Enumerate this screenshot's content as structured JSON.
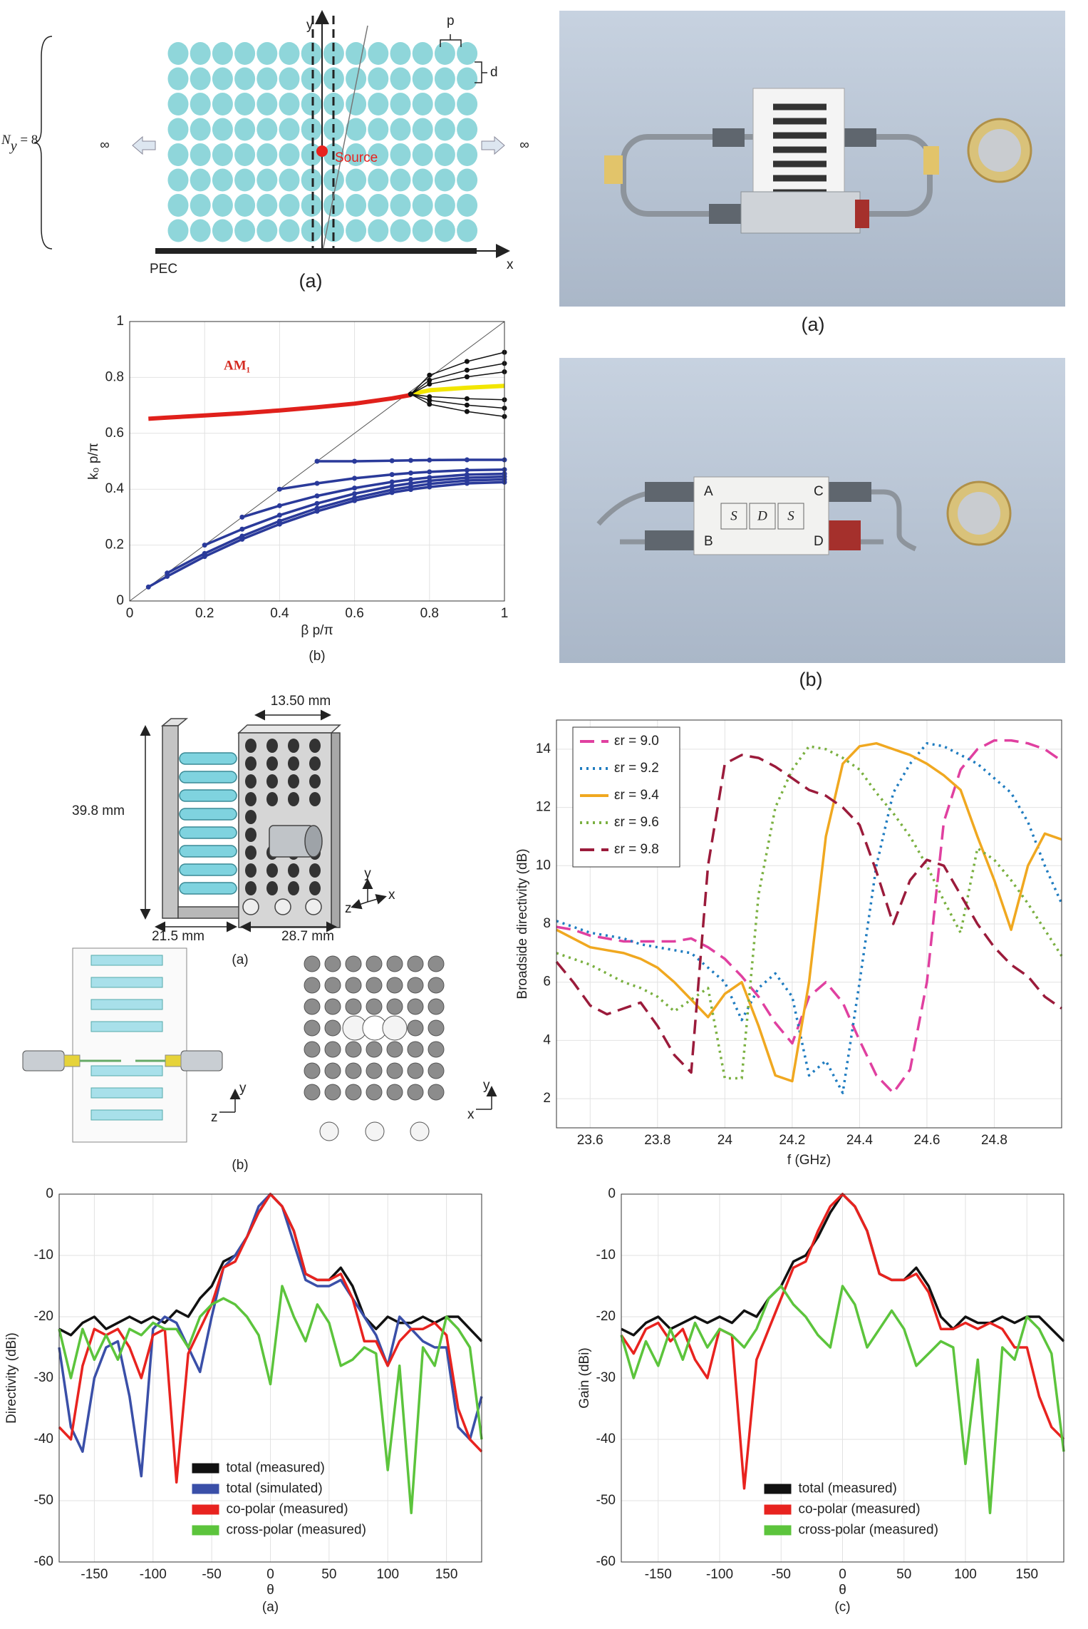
{
  "diagram": {
    "y_axis": "y",
    "x_axis": "x",
    "p": "p",
    "d": "d",
    "ny": [
      "N",
      "y",
      " = 8"
    ],
    "inf_left": "∞",
    "inf_right": "∞",
    "source": "Source",
    "pec": "PEC",
    "caption": "(a)"
  },
  "photos": {
    "a": {
      "caption": "(a)"
    },
    "b": {
      "caption": "(b)",
      "ports": [
        "A",
        "B",
        "C",
        "D"
      ],
      "letters": [
        "S",
        "D",
        "S"
      ]
    }
  },
  "cad": {
    "width_top": "13.50 mm",
    "height": "39.8 mm",
    "depth": "21.5 mm",
    "width": "28.7 mm",
    "caption_a": "(a)",
    "caption_b": "(b)",
    "axes_a": [
      "y",
      "z",
      "x"
    ],
    "axes_b1": [
      "y",
      "z"
    ],
    "axes_b2": [
      "y",
      "x"
    ]
  },
  "chart_data": [
    {
      "type": "line",
      "xlabel": "β p/π",
      "ylabel": "k₀ p/π",
      "caption": "(b)",
      "annotation": "AM₁",
      "light_line": true,
      "grid": true,
      "xlim": [
        0,
        1
      ],
      "ylim": [
        0,
        1
      ],
      "xticks": [
        0,
        0.2,
        0.4,
        0.6,
        0.8,
        1
      ],
      "yticks": [
        0,
        0.2,
        0.4,
        0.6,
        0.8,
        1
      ],
      "x": [
        0.05,
        0.1,
        0.2,
        0.3,
        0.4,
        0.5,
        0.6,
        0.7,
        0.75,
        0.8,
        0.9,
        1
      ],
      "series": [
        {
          "color": "#e0201b",
          "values": [
            0.652,
            0.656,
            0.664,
            0.672,
            0.682,
            0.693,
            0.706,
            0.725,
            0.737,
            null,
            null,
            null
          ]
        },
        {
          "color": "#2a3a9a",
          "marker": true,
          "values": [
            0.05,
            0.088,
            0.159,
            0.221,
            0.275,
            0.321,
            0.359,
            0.388,
            0.399,
            0.408,
            0.421,
            0.425
          ]
        },
        {
          "color": "#2a3a9a",
          "marker": true,
          "values": [
            null,
            0.1,
            0.17,
            0.232,
            0.286,
            0.332,
            0.369,
            0.398,
            0.409,
            0.419,
            0.431,
            0.435
          ]
        },
        {
          "color": "#2a3a9a",
          "marker": true,
          "values": [
            null,
            null,
            0.2,
            0.257,
            0.307,
            0.349,
            0.384,
            0.411,
            0.421,
            0.43,
            0.441,
            0.445
          ]
        },
        {
          "color": "#2a3a9a",
          "marker": true,
          "values": [
            null,
            null,
            null,
            0.3,
            0.341,
            0.376,
            0.404,
            0.426,
            0.435,
            0.442,
            0.452,
            0.455
          ]
        },
        {
          "color": "#2a3a9a",
          "marker": true,
          "values": [
            null,
            null,
            null,
            null,
            0.4,
            0.421,
            0.439,
            0.4525,
            0.458,
            0.462,
            0.468,
            0.47
          ]
        },
        {
          "color": "#2a3a9a",
          "marker": true,
          "values": [
            null,
            null,
            null,
            null,
            null,
            0.5,
            0.5,
            0.502,
            0.503,
            0.504,
            0.505,
            0.505
          ]
        },
        {
          "color": "#f2e600",
          "values": [
            null,
            null,
            null,
            null,
            null,
            null,
            null,
            null,
            0.74,
            0.754,
            0.763,
            0.77
          ]
        },
        {
          "color": "#111111",
          "marker": true,
          "values": [
            null,
            null,
            null,
            null,
            null,
            null,
            null,
            null,
            0.74,
            0.808,
            0.857,
            0.89
          ]
        },
        {
          "color": "#111111",
          "marker": true,
          "values": [
            null,
            null,
            null,
            null,
            null,
            null,
            null,
            null,
            0.74,
            0.79,
            0.826,
            0.85
          ]
        },
        {
          "color": "#111111",
          "marker": true,
          "values": [
            null,
            null,
            null,
            null,
            null,
            null,
            null,
            null,
            0.74,
            0.776,
            0.802,
            0.82
          ]
        },
        {
          "color": "#111111",
          "marker": true,
          "values": [
            null,
            null,
            null,
            null,
            null,
            null,
            null,
            null,
            0.74,
            0.731,
            0.724,
            0.72
          ]
        },
        {
          "color": "#111111",
          "marker": true,
          "values": [
            null,
            null,
            null,
            null,
            null,
            null,
            null,
            null,
            0.74,
            0.718,
            0.701,
            0.69
          ]
        },
        {
          "color": "#111111",
          "marker": true,
          "values": [
            null,
            null,
            null,
            null,
            null,
            null,
            null,
            null,
            0.74,
            0.704,
            0.678,
            0.66
          ]
        }
      ]
    },
    {
      "type": "line",
      "xlabel": "f (GHz)",
      "ylabel": "Broadside directivity (dB)",
      "grid": true,
      "legend": "upper left",
      "xlim": [
        23.5,
        25
      ],
      "ylim": [
        1,
        15
      ],
      "xticks": [
        23.6,
        23.8,
        24,
        24.2,
        24.4,
        24.6,
        24.8
      ],
      "yticks": [
        2,
        4,
        6,
        8,
        10,
        12,
        14
      ],
      "x": [
        23.5,
        23.55,
        23.6,
        23.65,
        23.7,
        23.75,
        23.8,
        23.85,
        23.9,
        23.95,
        24,
        24.05,
        24.1,
        24.15,
        24.2,
        24.25,
        24.3,
        24.35,
        24.4,
        24.45,
        24.5,
        24.55,
        24.6,
        24.65,
        24.7,
        24.75,
        24.8,
        24.85,
        24.9,
        24.95,
        25
      ],
      "series": [
        {
          "name": "εr = 9.0",
          "color": "#e040a0",
          "dash": "dashed",
          "values": [
            7.9,
            7.8,
            7.6,
            7.5,
            7.4,
            7.4,
            7.4,
            7.4,
            7.5,
            7.2,
            6.8,
            6.2,
            5.5,
            4.6,
            3.9,
            5.5,
            6.0,
            5.3,
            4.0,
            2.8,
            2.2,
            3.0,
            6.0,
            11.5,
            13.3,
            14.0,
            14.3,
            14.3,
            14.2,
            14.0,
            13.6
          ]
        },
        {
          "name": "εr = 9.2",
          "color": "#1f7cc0",
          "dash": "dotted",
          "values": [
            8.1,
            7.9,
            7.7,
            7.6,
            7.5,
            7.3,
            7.2,
            7.1,
            7.0,
            6.5,
            6.0,
            4.7,
            5.8,
            6.3,
            5.5,
            2.8,
            3.3,
            2.2,
            6.0,
            10.0,
            12.5,
            13.5,
            14.2,
            14.1,
            13.8,
            13.5,
            13.0,
            12.5,
            11.5,
            10.0,
            8.7
          ]
        },
        {
          "name": "εr = 9.4",
          "color": "#f0a820",
          "dash": "solid",
          "values": [
            7.8,
            7.5,
            7.2,
            7.1,
            7.0,
            6.8,
            6.5,
            6.0,
            5.4,
            4.8,
            5.6,
            6.0,
            4.5,
            2.8,
            2.6,
            6.0,
            11.0,
            13.5,
            14.1,
            14.2,
            14.0,
            13.8,
            13.5,
            13.1,
            12.6,
            11.0,
            9.5,
            7.8,
            10.0,
            11.1,
            10.9
          ]
        },
        {
          "name": "εr = 9.6",
          "color": "#7ab040",
          "dash": "dotted",
          "values": [
            7.0,
            6.8,
            6.6,
            6.3,
            6.0,
            5.8,
            5.5,
            5.0,
            5.4,
            5.8,
            2.7,
            2.7,
            9.0,
            12.0,
            13.3,
            14.1,
            14.0,
            13.7,
            13.3,
            12.5,
            11.8,
            11.0,
            10.0,
            8.8,
            7.7,
            10.6,
            10.2,
            9.5,
            8.7,
            7.8,
            6.9
          ]
        },
        {
          "name": "εr = 9.8",
          "color": "#9b1b3b",
          "dash": "dashed",
          "values": [
            6.7,
            6.0,
            5.2,
            4.9,
            5.1,
            5.3,
            4.5,
            3.5,
            2.9,
            10.0,
            13.5,
            13.8,
            13.7,
            13.4,
            13.0,
            12.6,
            12.4,
            12.0,
            11.4,
            9.8,
            8.0,
            9.5,
            10.2,
            10.0,
            9.0,
            8.0,
            7.2,
            6.6,
            6.2,
            5.5,
            5.1
          ]
        }
      ]
    },
    {
      "type": "line",
      "xlabel": "θ",
      "ylabel": "Directivity (dBi)",
      "caption": "(a)",
      "grid": true,
      "legend": "lower center",
      "xlim": [
        -180,
        180
      ],
      "ylim": [
        -60,
        0
      ],
      "xticks": [
        -150,
        -100,
        -50,
        0,
        50,
        100,
        150
      ],
      "yticks": [
        0,
        -10,
        -20,
        -30,
        -40,
        -50,
        -60
      ],
      "x": [
        -180,
        -170,
        -160,
        -150,
        -140,
        -130,
        -120,
        -110,
        -100,
        -90,
        -80,
        -70,
        -60,
        -50,
        -40,
        -30,
        -20,
        -10,
        0,
        10,
        20,
        30,
        40,
        50,
        60,
        70,
        80,
        90,
        100,
        110,
        120,
        130,
        140,
        150,
        160,
        170,
        180
      ],
      "series": [
        {
          "name": "total (measured)",
          "color": "#111111",
          "values": [
            -22,
            -23,
            -21,
            -20,
            -22,
            -21,
            -20,
            -21,
            -20,
            -21,
            -19,
            -20,
            -17,
            -15,
            -11,
            -10,
            -7,
            -3,
            0,
            -2,
            -6,
            -13,
            -14,
            -14,
            -12,
            -15,
            -20,
            -22,
            -20,
            -21,
            -21,
            -20,
            -21,
            -20,
            -20,
            -22,
            -24
          ]
        },
        {
          "name": "total (simulated)",
          "color": "#3a4fa8",
          "values": [
            -25,
            -38,
            -42,
            -30,
            -25,
            -24,
            -33,
            -46,
            -22,
            -20,
            -21,
            -25,
            -29,
            -20,
            -12,
            -10,
            -7,
            -2,
            0,
            -2,
            -8,
            -14,
            -15,
            -15,
            -14,
            -17,
            -20,
            -23,
            -28,
            -20,
            -22,
            -24,
            -25,
            -25,
            -38,
            -40,
            -33
          ]
        },
        {
          "name": "co-polar (measured)",
          "color": "#e8231f",
          "values": [
            -38,
            -40,
            -28,
            -22,
            -23,
            -22,
            -25,
            -30,
            -23,
            -22,
            -47,
            -26,
            -22,
            -18,
            -12,
            -11,
            -7,
            -3,
            0,
            -2,
            -6,
            -13,
            -14,
            -14,
            -13,
            -17,
            -24,
            -24,
            -28,
            -24,
            -22,
            -22,
            -21,
            -23,
            -35,
            -40,
            -42
          ]
        },
        {
          "name": "cross-polar (measured)",
          "color": "#5cc43c",
          "values": [
            -22,
            -30,
            -22,
            -27,
            -23,
            -27,
            -22,
            -23,
            -21,
            -22,
            -22,
            -25,
            -20,
            -18,
            -17,
            -18,
            -20,
            -23,
            -31,
            -15,
            -20,
            -24,
            -18,
            -21,
            -28,
            -27,
            -25,
            -26,
            -45,
            -28,
            -52,
            -25,
            -28,
            -20,
            -22,
            -25,
            -40
          ]
        }
      ]
    },
    {
      "type": "line",
      "xlabel": "θ",
      "ylabel": "Gain (dBi)",
      "caption": "(c)",
      "grid": true,
      "legend": "lower center",
      "xlim": [
        -180,
        180
      ],
      "ylim": [
        -60,
        0
      ],
      "xticks": [
        -150,
        -100,
        -50,
        0,
        50,
        100,
        150
      ],
      "yticks": [
        0,
        -10,
        -20,
        -30,
        -40,
        -50,
        -60
      ],
      "x": [
        -180,
        -170,
        -160,
        -150,
        -140,
        -130,
        -120,
        -110,
        -100,
        -90,
        -80,
        -70,
        -60,
        -50,
        -40,
        -30,
        -20,
        -10,
        0,
        10,
        20,
        30,
        40,
        50,
        60,
        70,
        80,
        90,
        100,
        110,
        120,
        130,
        140,
        150,
        160,
        170,
        180
      ],
      "series": [
        {
          "name": "total (measured)",
          "color": "#111111",
          "values": [
            -22,
            -23,
            -21,
            -20,
            -22,
            -21,
            -20,
            -21,
            -20,
            -21,
            -19,
            -20,
            -17,
            -15,
            -11,
            -10,
            -7,
            -3,
            0,
            -2,
            -6,
            -13,
            -14,
            -14,
            -12,
            -15,
            -20,
            -22,
            -20,
            -21,
            -21,
            -20,
            -21,
            -20,
            -20,
            -22,
            -24
          ]
        },
        {
          "name": "co-polar (measured)",
          "color": "#e8231f",
          "values": [
            -23,
            -26,
            -22,
            -21,
            -24,
            -22,
            -27,
            -30,
            -22,
            -23,
            -48,
            -27,
            -22,
            -17,
            -12,
            -11,
            -6,
            -2,
            0,
            -2,
            -6,
            -13,
            -14,
            -14,
            -13,
            -16,
            -22,
            -22,
            -21,
            -22,
            -21,
            -22,
            -25,
            -25,
            -33,
            -38,
            -40
          ]
        },
        {
          "name": "cross-polar (measured)",
          "color": "#5cc43c",
          "values": [
            -23,
            -30,
            -24,
            -28,
            -22,
            -27,
            -21,
            -25,
            -22,
            -23,
            -25,
            -22,
            -17,
            -15,
            -18,
            -20,
            -23,
            -25,
            -15,
            -18,
            -25,
            -22,
            -19,
            -22,
            -28,
            -26,
            -24,
            -25,
            -44,
            -27,
            -52,
            -25,
            -27,
            -20,
            -22,
            -26,
            -42
          ]
        }
      ]
    }
  ]
}
